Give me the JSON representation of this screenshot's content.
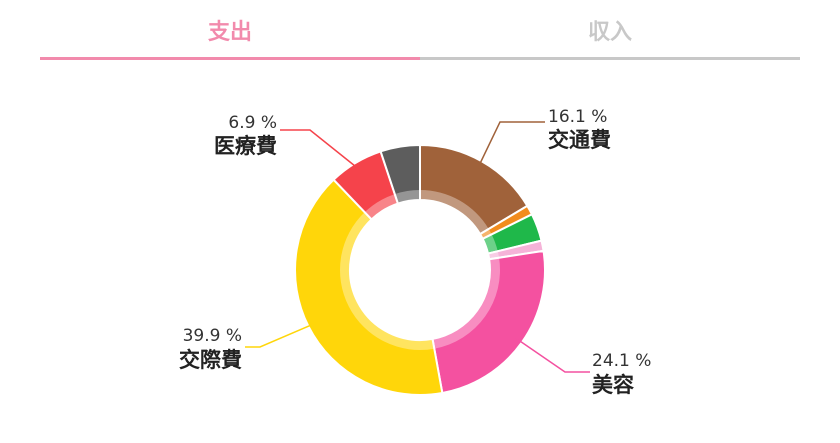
{
  "tabs": [
    {
      "label": "支出",
      "active": true,
      "color": "#f28aac",
      "underline": "#f28aac"
    },
    {
      "label": "収入",
      "active": false,
      "color": "#c8c8c8",
      "underline": "#c8c8c8"
    }
  ],
  "chart_data": {
    "type": "pie",
    "style": "donut",
    "slices": [
      {
        "name": "交通費",
        "value": 16.1,
        "color": "#a0623a",
        "label": "16.1 %",
        "show_label": true
      },
      {
        "name": "",
        "value": 1.2,
        "color": "#f28c1e",
        "show_label": false
      },
      {
        "name": "",
        "value": 3.5,
        "color": "#1fb84a",
        "show_label": false
      },
      {
        "name": "",
        "value": 1.3,
        "color": "#f5b3d8",
        "show_label": false
      },
      {
        "name": "美容",
        "value": 24.1,
        "color": "#f451a0",
        "label": "24.1 %",
        "show_label": true
      },
      {
        "name": "交際費",
        "value": 39.9,
        "color": "#ffd60a",
        "label": "39.9 %",
        "show_label": true
      },
      {
        "name": "医療費",
        "value": 6.9,
        "color": "#f5434b",
        "label": "6.9 %",
        "show_label": true
      },
      {
        "name": "",
        "value": 5.0,
        "color": "#5d5d5d",
        "show_label": false
      }
    ]
  }
}
